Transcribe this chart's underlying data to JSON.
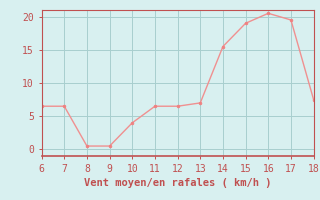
{
  "x": [
    6,
    7,
    8,
    9,
    10,
    11,
    12,
    13,
    14,
    15,
    16,
    17,
    18
  ],
  "y": [
    6.5,
    6.5,
    0.5,
    0.5,
    4.0,
    6.5,
    6.5,
    7.0,
    15.5,
    19.0,
    20.5,
    19.5,
    7.5
  ],
  "line_color": "#f09090",
  "marker_color": "#f08080",
  "bg_color": "#d8f0f0",
  "grid_color": "#a8cece",
  "axis_color": "#c05050",
  "tick_color": "#c05050",
  "xlabel": "Vent moyen/en rafales ( km/h )",
  "xlim": [
    6,
    18
  ],
  "ylim": [
    -1,
    21
  ],
  "yticks": [
    0,
    5,
    10,
    15,
    20
  ],
  "xticks": [
    6,
    7,
    8,
    9,
    10,
    11,
    12,
    13,
    14,
    15,
    16,
    17,
    18
  ],
  "font_color": "#c05050",
  "xlabel_fontsize": 7.5,
  "tick_fontsize": 7.0
}
